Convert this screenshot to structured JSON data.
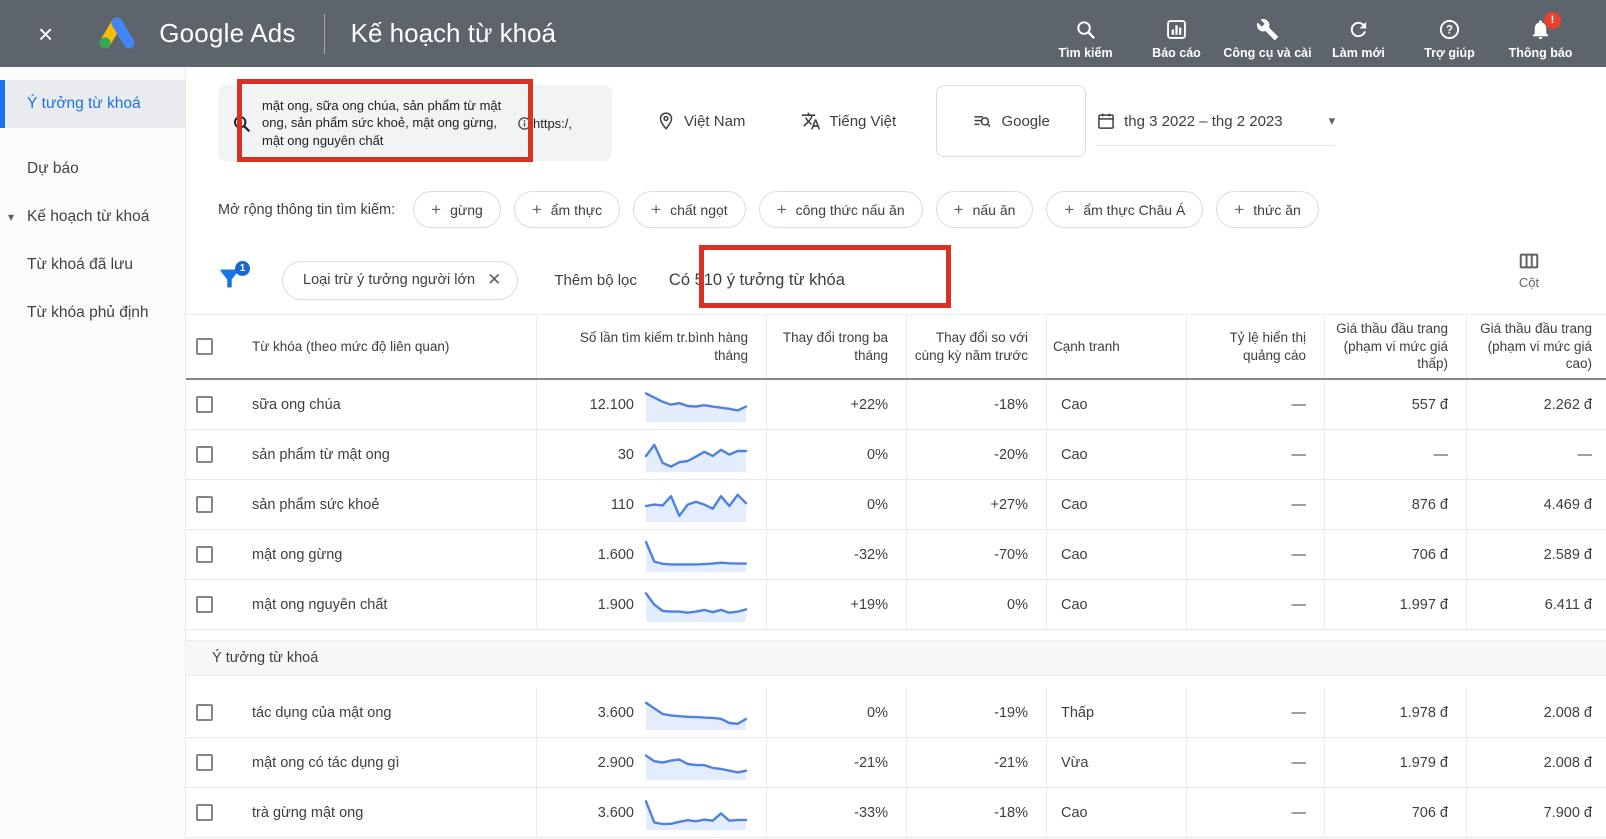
{
  "colors": {
    "topbar_bg": "#5e646b",
    "accent_blue": "#1a73e8",
    "annotation_red": "#da3125",
    "sparkline_blue": "#4d82e0",
    "logo_yellow": "#fbbc04",
    "logo_blue": "#4285f4",
    "logo_green": "#34a853"
  },
  "topbar": {
    "close": "×",
    "brand": "Google Ads",
    "page_title": "Kế hoạch từ khoá",
    "actions": [
      {
        "icon": "search-icon",
        "label": "Tìm kiếm"
      },
      {
        "icon": "reports-icon",
        "label": "Báo cáo"
      },
      {
        "icon": "tools-icon",
        "label": "Công cụ và cài"
      },
      {
        "icon": "refresh-icon",
        "label": "Làm mới"
      },
      {
        "icon": "help-icon",
        "label": "Trợ giúp"
      },
      {
        "icon": "notifications-icon",
        "label": "Thông báo",
        "badge": "!"
      }
    ]
  },
  "sidebar": {
    "items": [
      {
        "label": "Ý tưởng từ khoá",
        "active": true
      },
      {
        "label": "Dự báo",
        "active": false
      },
      {
        "label": "Kế hoạch từ khoá",
        "active": false,
        "caret": "▾"
      },
      {
        "label": "Từ khoá đã lưu",
        "active": false
      },
      {
        "label": "Từ khóa phủ định",
        "active": false
      }
    ]
  },
  "searchbar": {
    "keywords": "mật ong, sữa ong chúa, sản phẩm từ mật ong, sản phẩm sức khoẻ, mật ong gừng, mật ong nguyên chất",
    "url_hint": "https:/,",
    "location": "Việt Nam",
    "language": "Tiếng Việt",
    "network": "Google",
    "date_range": "thg 3 2022 – thg 2 2023",
    "date_caret": "▾"
  },
  "refine": {
    "label": "Mở rộng thông tin tìm kiếm:",
    "chips": [
      "gừng",
      "ẩm thực",
      "chất ngọt",
      "công thức nấu ăn",
      "nấu ăn",
      "ẩm thực Châu Á",
      "thức ăn"
    ]
  },
  "filterbar": {
    "filter_badge": "1",
    "filter_chip": "Loại trừ ý tưởng người lớn",
    "filter_chip_close": "✕",
    "add_filter": "Thêm bộ lọc",
    "result_count": "Có 510 ý tưởng từ khóa",
    "columns_label": "Cột"
  },
  "table": {
    "headers": [
      "Từ khóa (theo mức độ liên quan)",
      "Số lần tìm kiếm tr.bình hàng tháng",
      "Thay đổi trong ba tháng",
      "Thay đổi so với cùng kỳ năm trước",
      "Cạnh tranh",
      "Tỷ lệ hiển thị quảng cáo",
      "Giá thầu đầu trang (phạm vi mức giá thấp)",
      "Giá thầu đầu trang (phạm vi mức giá cao)"
    ],
    "provided_rows": [
      {
        "keyword": "sữa ong chúa",
        "volume": "12.100",
        "change_3m": "+22%",
        "change_yoy": "-18%",
        "competition": "Cao",
        "impression_share": "—",
        "bid_low": "557 đ",
        "bid_high": "2.262 đ",
        "spark": [
          9.5,
          8,
          6.5,
          5.5,
          6,
          5,
          4.8,
          5.3,
          4.8,
          4.4,
          4,
          3.4,
          4.8
        ]
      },
      {
        "keyword": "sản phẩm từ mật ong",
        "volume": "30",
        "change_3m": "0%",
        "change_yoy": "-20%",
        "competition": "Cao",
        "impression_share": "—",
        "bid_low": "—",
        "bid_high": "—",
        "spark": [
          5,
          9,
          2.5,
          1.2,
          2.8,
          3.2,
          4.8,
          6.5,
          5,
          7.2,
          5.5,
          6.8,
          6.8
        ]
      },
      {
        "keyword": "sản phẩm sức khoẻ",
        "volume": "110",
        "change_3m": "0%",
        "change_yoy": "+27%",
        "competition": "Cao",
        "impression_share": "—",
        "bid_low": "876 đ",
        "bid_high": "4.469 đ",
        "spark": [
          5,
          5.5,
          5.2,
          8.5,
          1.5,
          5.5,
          6.5,
          5.5,
          4,
          8.5,
          5,
          9,
          6
        ]
      },
      {
        "keyword": "mật ong gừng",
        "volume": "1.600",
        "change_3m": "-32%",
        "change_yoy": "-70%",
        "competition": "Cao",
        "impression_share": "—",
        "bid_low": "706 đ",
        "bid_high": "2.589 đ",
        "spark": [
          10,
          3,
          2.2,
          2,
          2,
          2,
          2,
          2.1,
          2.3,
          2.6,
          2.4,
          2.3,
          2.3
        ]
      },
      {
        "keyword": "mật ong nguyên chất",
        "volume": "1.900",
        "change_3m": "+19%",
        "change_yoy": "0%",
        "competition": "Cao",
        "impression_share": "—",
        "bid_low": "1.997 đ",
        "bid_high": "6.411 đ",
        "spark": [
          9.5,
          5.5,
          3.2,
          3,
          3,
          2.6,
          3,
          3.6,
          2.8,
          3.6,
          2.6,
          3,
          3.8
        ]
      }
    ],
    "section_label": "Ý tưởng từ khoá",
    "idea_rows": [
      {
        "keyword": "tác dụng của mật ong",
        "volume": "3.600",
        "change_3m": "0%",
        "change_yoy": "-19%",
        "competition": "Thấp",
        "impression_share": "—",
        "bid_low": "1.978 đ",
        "bid_high": "2.008 đ",
        "spark": [
          9,
          7,
          5,
          4.5,
          4.2,
          4,
          3.9,
          3.7,
          3.6,
          3.3,
          1.8,
          1.5,
          3.2
        ]
      },
      {
        "keyword": "mật ong có tác dụng gì",
        "volume": "2.900",
        "change_3m": "-21%",
        "change_yoy": "-21%",
        "competition": "Vừa",
        "impression_share": "—",
        "bid_low": "1.979 đ",
        "bid_high": "2.008 đ",
        "spark": [
          8,
          6,
          5.5,
          6.2,
          6.6,
          5,
          4.6,
          4.6,
          3.6,
          3.2,
          2.6,
          2,
          2.6
        ]
      },
      {
        "keyword": "trà gừng mật ong",
        "volume": "3.600",
        "change_3m": "-33%",
        "change_yoy": "-18%",
        "competition": "Cao",
        "impression_share": "—",
        "bid_low": "706 đ",
        "bid_high": "7.900 đ",
        "spark": [
          9.5,
          2,
          1.4,
          1.5,
          2.2,
          2.8,
          2.4,
          3,
          2.6,
          5.2,
          2.6,
          2.9,
          2.9
        ]
      }
    ]
  }
}
